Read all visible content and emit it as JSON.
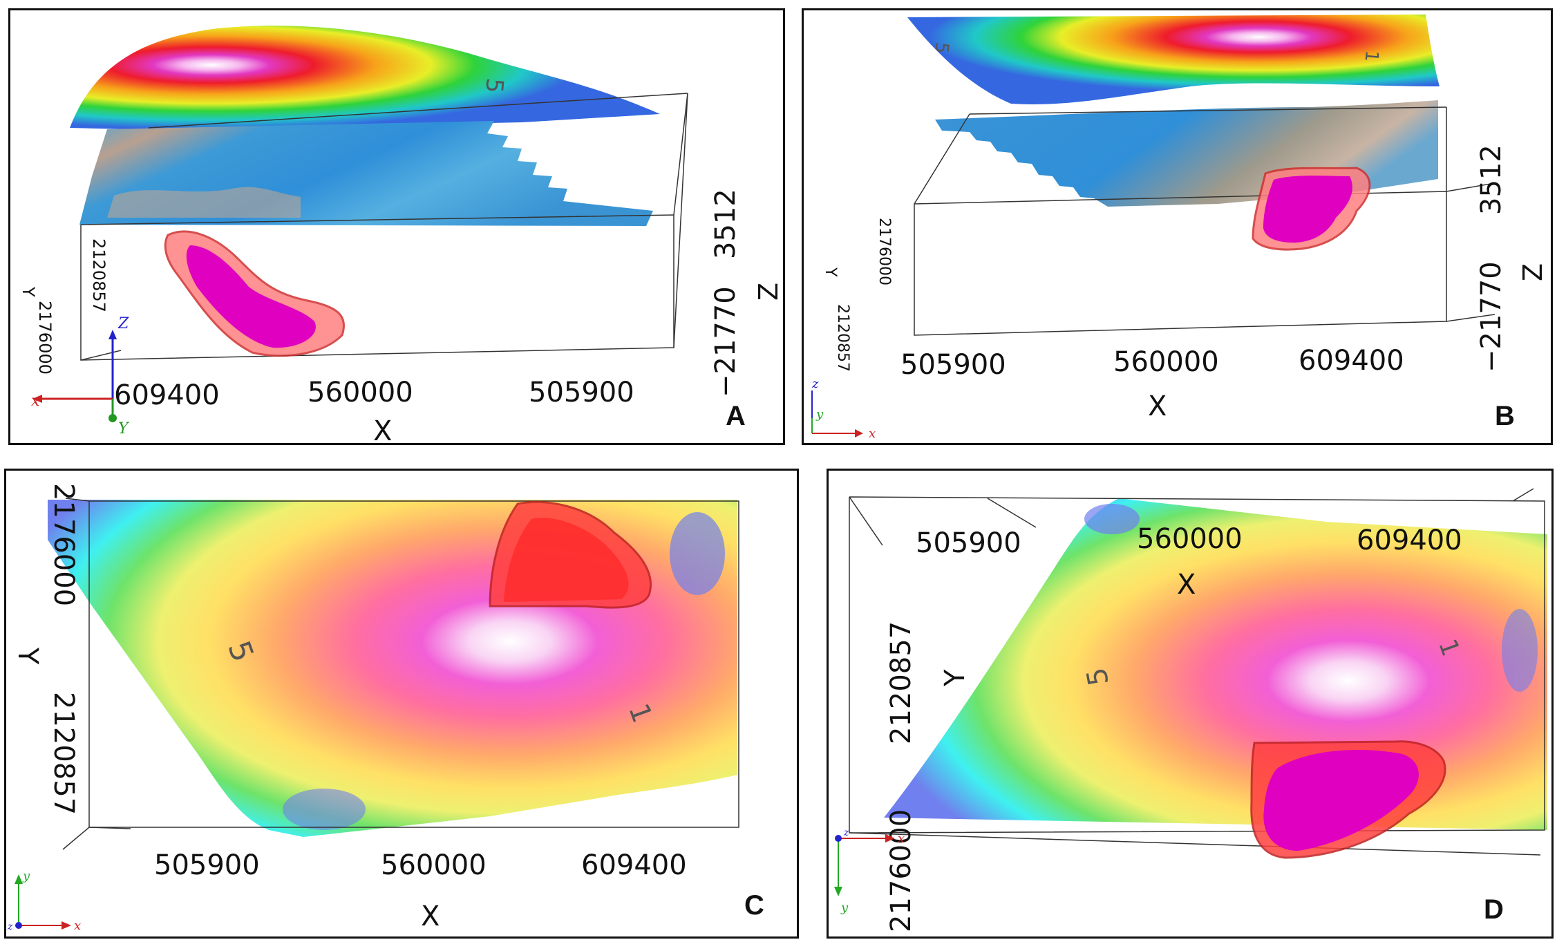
{
  "figure": {
    "panels": [
      {
        "letter": "A",
        "x_ticks": [
          "609400",
          "560000",
          "505900"
        ],
        "x_label": "X",
        "z_ticks": [
          "3512",
          "−21770"
        ],
        "z_label": "Z",
        "y_ticks": [
          "2120857",
          "2176000"
        ],
        "y_label": "Y",
        "contour_labels": [
          "5"
        ],
        "triad": {
          "x": "x",
          "y": "Y",
          "z": "Z"
        }
      },
      {
        "letter": "B",
        "x_ticks": [
          "505900",
          "560000",
          "609400"
        ],
        "x_label": "X",
        "z_ticks": [
          "3512",
          "−21770"
        ],
        "z_label": "Z",
        "y_ticks": [
          "2176000",
          "2120857"
        ],
        "y_label": "Y",
        "contour_labels": [
          "5",
          "1"
        ],
        "triad": {
          "x": "x",
          "y": "y",
          "z": "z"
        }
      },
      {
        "letter": "C",
        "x_ticks": [
          "505900",
          "560000",
          "609400"
        ],
        "x_label": "X",
        "y_ticks": [
          "2176000",
          "2120857"
        ],
        "y_label": "Y",
        "contour_labels": [
          "5",
          "1"
        ],
        "triad": {
          "x": "x",
          "y": "y",
          "z": "z"
        }
      },
      {
        "letter": "D",
        "x_ticks": [
          "505900",
          "560000",
          "609400"
        ],
        "x_label": "X",
        "y_ticks": [
          "2120857",
          "2176000"
        ],
        "y_label": "Y",
        "contour_labels": [
          "5",
          "1"
        ],
        "triad": {
          "x": "x",
          "y": "y",
          "z": "z"
        }
      }
    ]
  },
  "colors": {
    "ore_body": "#e000c0",
    "ore_shell": "#e04040",
    "high": "#ffffff",
    "low": "#5a55e0"
  }
}
